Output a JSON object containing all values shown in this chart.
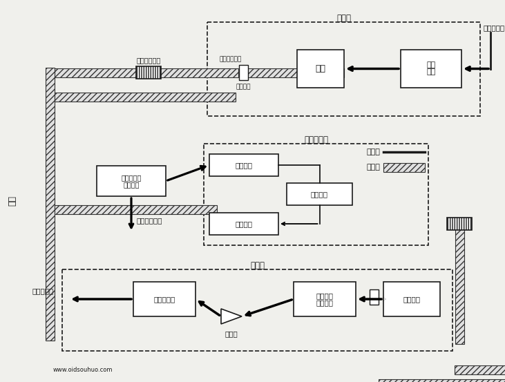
{
  "bg": "#f0f0ec",
  "lc": "#1a1a1a",
  "bf": "#ffffff",
  "top_title": "发送机",
  "top_input": "电信号输入",
  "top_elec1": "电信",
  "top_elec2": "设备",
  "top_light": "光源",
  "top_connector": "光连接器",
  "top_splitter": "光缆层分层器",
  "top_spool": "光缆层分层盒",
  "mid_title": "再生中继器",
  "mid_detect": "光检测器",
  "mid_elec": "电处理器",
  "mid_emit": "光发射器",
  "mid_combiner1": "光路合山器代替山器",
  "mid_backup": "中继回路备份",
  "bot_title": "接收机",
  "bot_amp": "光放大器",
  "bot_conn": "光连接器",
  "bot_conv1": "光波转换",
  "bot_conv2": "光检波器",
  "bot_triamp": "放大器",
  "bot_proc": "信号处理器",
  "bot_out": "电信号输出",
  "leg_elec": "电信号",
  "leg_opt": "光信号",
  "side_opt": "光缆",
  "watermark": "www.oidsouhuo.com"
}
